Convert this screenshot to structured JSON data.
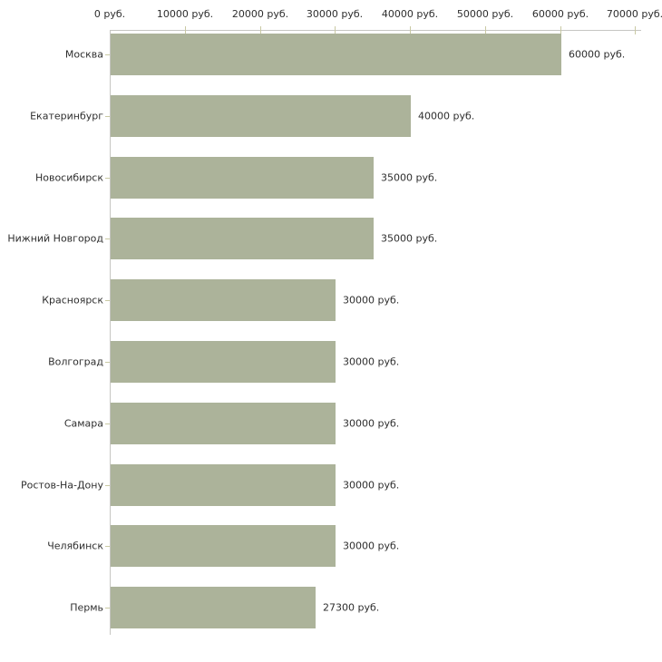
{
  "chart_data": {
    "type": "bar",
    "orientation": "horizontal",
    "title": "",
    "xlabel": "",
    "ylabel": "",
    "unit": "руб.",
    "xlim": [
      0,
      70000
    ],
    "grid": false,
    "legend": false,
    "categories": [
      "Москва",
      "Екатеринбург",
      "Новосибирск",
      "Нижний Новгород",
      "Красноярск",
      "Волгоград",
      "Самара",
      "Ростов-На-Дону",
      "Челябинск",
      "Пермь"
    ],
    "values": [
      60000,
      40000,
      35000,
      35000,
      30000,
      30000,
      30000,
      30000,
      30000,
      27300
    ],
    "value_labels": [
      "60000 руб.",
      "40000 руб.",
      "35000 руб.",
      "35000 руб.",
      "30000 руб.",
      "30000 руб.",
      "30000 руб.",
      "30000 руб.",
      "30000 руб.",
      "27300 руб."
    ],
    "x_ticks": [
      0,
      10000,
      20000,
      30000,
      40000,
      50000,
      60000,
      70000
    ],
    "x_tick_labels": [
      "0 руб.",
      "10000 руб.",
      "20000 руб.",
      "30000 руб.",
      "40000 руб.",
      "50000 руб.",
      "60000 руб.",
      "70000 руб."
    ],
    "colors": {
      "bar_fill": "#acb39a",
      "axis_line": "#c6c6c2",
      "tick_mark": "#c9c9a3",
      "text": "#2e2e2e",
      "background": "#ffffff"
    }
  }
}
